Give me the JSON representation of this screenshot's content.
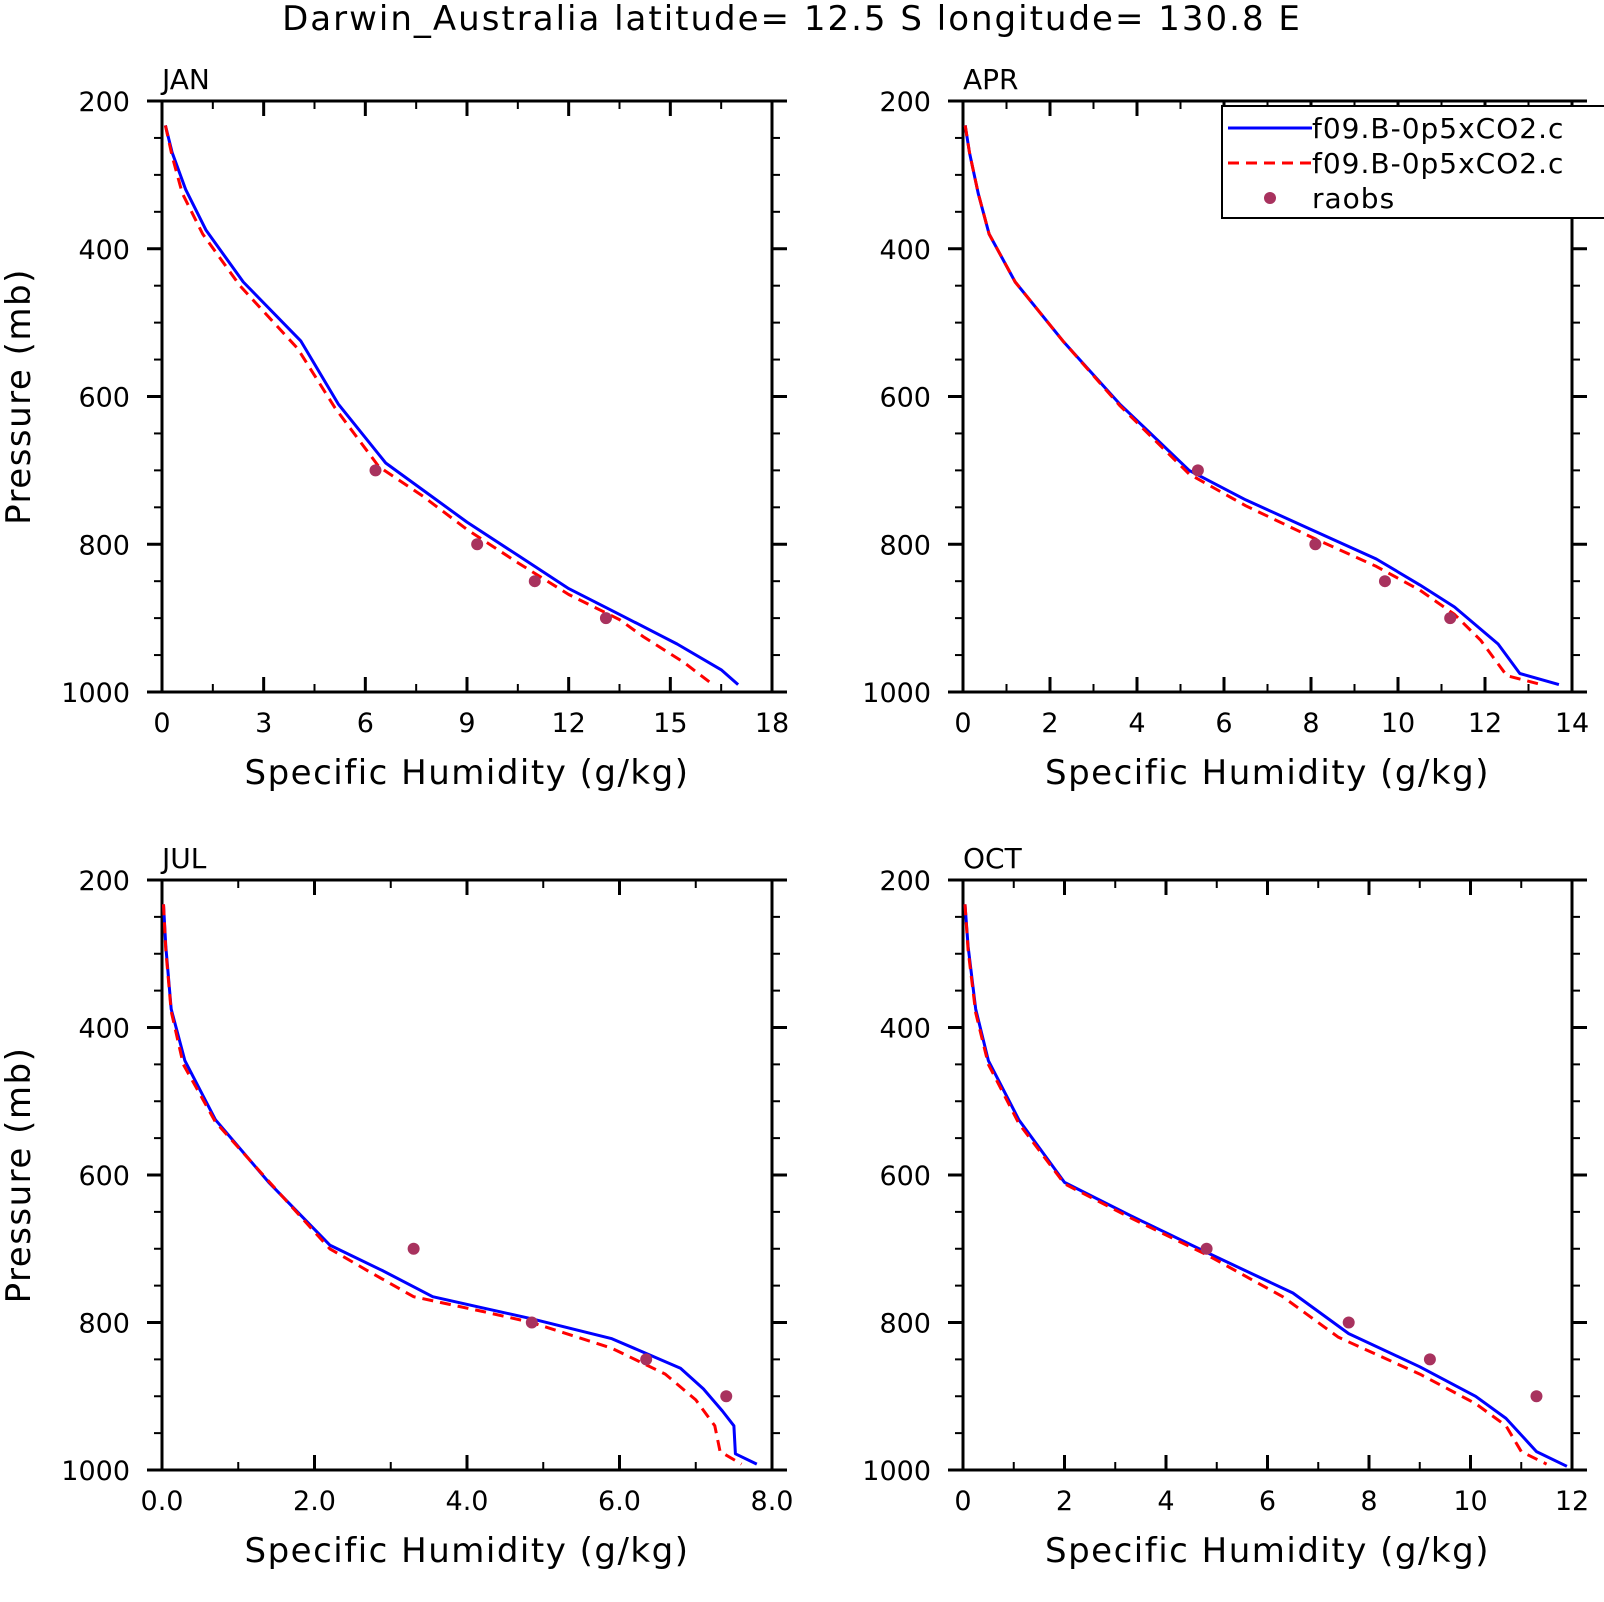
{
  "title": "Darwin_Australia  latitude= 12.5 S longitude= 130.8 E",
  "colors": {
    "model_solid": "#0000ff",
    "model_dashed": "#ff0000",
    "raobs": "#a8325e",
    "axis": "#000000"
  },
  "legend": {
    "entries": [
      {
        "label": "f09.B-0p5xCO2.c",
        "style": "solid"
      },
      {
        "label": "f09.B-0p5xCO2.c",
        "style": "dashed"
      },
      {
        "label": "raobs",
        "style": "marker"
      }
    ]
  },
  "chart_data": [
    {
      "type": "line",
      "panel": "JAN",
      "xlabel": "Specific Humidity (g/kg)",
      "ylabel": "Pressure (mb)",
      "xlim": [
        0,
        18
      ],
      "ylim": [
        200,
        1000
      ],
      "y_inverted": true,
      "xticks": [
        0,
        3,
        6,
        9,
        12,
        15,
        18
      ],
      "xtick_labels": [
        "0",
        "3",
        "6",
        "9",
        "12",
        "15",
        "18"
      ],
      "yticks": [
        200,
        400,
        600,
        800,
        1000
      ],
      "ytick_labels": [
        "200",
        "400",
        "600",
        "800",
        "1000"
      ],
      "series": [
        {
          "style": "solid",
          "points": [
            [
              0.1,
              233
            ],
            [
              0.3,
              270
            ],
            [
              0.7,
              320
            ],
            [
              1.3,
              375
            ],
            [
              2.4,
              445
            ],
            [
              4.1,
              525
            ],
            [
              5.2,
              610
            ],
            [
              6.6,
              690
            ],
            [
              7.8,
              730
            ],
            [
              9,
              770
            ],
            [
              10.5,
              815
            ],
            [
              12,
              860
            ],
            [
              13.5,
              895
            ],
            [
              15.2,
              935
            ],
            [
              16.5,
              970
            ],
            [
              17,
              990
            ]
          ]
        },
        {
          "style": "dashed",
          "points": [
            [
              0.1,
              233
            ],
            [
              0.3,
              275
            ],
            [
              0.6,
              325
            ],
            [
              1.2,
              380
            ],
            [
              2.3,
              450
            ],
            [
              4,
              535
            ],
            [
              5.1,
              615
            ],
            [
              6.4,
              695
            ],
            [
              7.7,
              735
            ],
            [
              9,
              780
            ],
            [
              10.5,
              825
            ],
            [
              12,
              868
            ],
            [
              13.5,
              902
            ],
            [
              14.2,
              925
            ],
            [
              15.4,
              960
            ],
            [
              16.2,
              988
            ]
          ]
        },
        {
          "style": "marker",
          "points": [
            [
              6.3,
              700
            ],
            [
              9.3,
              800
            ],
            [
              11,
              850
            ],
            [
              13.1,
              900
            ]
          ]
        }
      ]
    },
    {
      "type": "line",
      "panel": "APR",
      "xlabel": "Specific Humidity (g/kg)",
      "ylabel": "",
      "xlim": [
        0,
        14
      ],
      "ylim": [
        200,
        1000
      ],
      "y_inverted": true,
      "xticks": [
        0,
        2,
        4,
        6,
        8,
        10,
        12,
        14
      ],
      "xtick_labels": [
        "0",
        "2",
        "4",
        "6",
        "8",
        "10",
        "12",
        "14"
      ],
      "yticks": [
        200,
        400,
        600,
        800,
        1000
      ],
      "ytick_labels": [
        "200",
        "400",
        "600",
        "800",
        "1000"
      ],
      "series": [
        {
          "style": "solid",
          "points": [
            [
              0.05,
              233
            ],
            [
              0.15,
              270
            ],
            [
              0.35,
              325
            ],
            [
              0.6,
              380
            ],
            [
              1.2,
              445
            ],
            [
              2.3,
              525
            ],
            [
              3.6,
              610
            ],
            [
              5.2,
              700
            ],
            [
              6.5,
              740
            ],
            [
              8,
              780
            ],
            [
              9.5,
              820
            ],
            [
              10.5,
              855
            ],
            [
              11.3,
              885
            ],
            [
              11.8,
              910
            ],
            [
              12.3,
              935
            ],
            [
              12.8,
              975
            ],
            [
              13.7,
              990
            ]
          ]
        },
        {
          "style": "dashed",
          "points": [
            [
              0.05,
              233
            ],
            [
              0.15,
              270
            ],
            [
              0.35,
              325
            ],
            [
              0.6,
              380
            ],
            [
              1.2,
              445
            ],
            [
              2.3,
              525
            ],
            [
              3.6,
              612
            ],
            [
              5.2,
              705
            ],
            [
              6.5,
              748
            ],
            [
              8,
              790
            ],
            [
              9.5,
              830
            ],
            [
              10.5,
              862
            ],
            [
              11.3,
              895
            ],
            [
              11.9,
              930
            ],
            [
              12.5,
              978
            ],
            [
              13.3,
              990
            ]
          ]
        },
        {
          "style": "marker",
          "points": [
            [
              5.4,
              700
            ],
            [
              8.1,
              800
            ],
            [
              9.7,
              850
            ],
            [
              11.2,
              900
            ]
          ]
        }
      ]
    },
    {
      "type": "line",
      "panel": "JUL",
      "xlabel": "Specific Humidity (g/kg)",
      "ylabel": "Pressure (mb)",
      "xlim": [
        0,
        8
      ],
      "ylim": [
        200,
        1000
      ],
      "y_inverted": true,
      "xticks": [
        0,
        2,
        4,
        6,
        8
      ],
      "xtick_labels": [
        "0.0",
        "2.0",
        "4.0",
        "6.0",
        "8.0"
      ],
      "yticks": [
        200,
        400,
        600,
        800,
        1000
      ],
      "ytick_labels": [
        "200",
        "400",
        "600",
        "800",
        "1000"
      ],
      "series": [
        {
          "style": "solid",
          "points": [
            [
              0.02,
              233
            ],
            [
              0.05,
              290
            ],
            [
              0.12,
              375
            ],
            [
              0.3,
              445
            ],
            [
              0.7,
              525
            ],
            [
              1.4,
              610
            ],
            [
              2.2,
              695
            ],
            [
              2.9,
              730
            ],
            [
              3.55,
              765
            ],
            [
              4.2,
              780
            ],
            [
              4.85,
              795
            ],
            [
              5.9,
              822
            ],
            [
              6.8,
              862
            ],
            [
              7.1,
              890
            ],
            [
              7.35,
              920
            ],
            [
              7.5,
              940
            ],
            [
              7.52,
              978
            ],
            [
              7.8,
              992
            ]
          ]
        },
        {
          "style": "dashed",
          "points": [
            [
              0.02,
              233
            ],
            [
              0.05,
              295
            ],
            [
              0.12,
              378
            ],
            [
              0.28,
              450
            ],
            [
              0.7,
              528
            ],
            [
              1.5,
              620
            ],
            [
              2.2,
              700
            ],
            [
              2.7,
              730
            ],
            [
              3.3,
              765
            ],
            [
              4.2,
              785
            ],
            [
              4.85,
              800
            ],
            [
              5.9,
              835
            ],
            [
              6.6,
              870
            ],
            [
              7,
              905
            ],
            [
              7.25,
              940
            ],
            [
              7.32,
              975
            ],
            [
              7.6,
              992
            ]
          ]
        },
        {
          "style": "marker",
          "points": [
            [
              3.3,
              700
            ],
            [
              4.85,
              800
            ],
            [
              6.35,
              850
            ],
            [
              7.4,
              900
            ]
          ]
        }
      ]
    },
    {
      "type": "line",
      "panel": "OCT",
      "xlabel": "Specific Humidity (g/kg)",
      "ylabel": "",
      "xlim": [
        0,
        12
      ],
      "ylim": [
        200,
        1000
      ],
      "y_inverted": true,
      "xticks": [
        0,
        2,
        4,
        6,
        8,
        10,
        12
      ],
      "xtick_labels": [
        "0",
        "2",
        "4",
        "6",
        "8",
        "10",
        "12"
      ],
      "yticks": [
        200,
        400,
        600,
        800,
        1000
      ],
      "ytick_labels": [
        "200",
        "400",
        "600",
        "800",
        "1000"
      ],
      "series": [
        {
          "style": "solid",
          "points": [
            [
              0.04,
              233
            ],
            [
              0.1,
              290
            ],
            [
              0.25,
              375
            ],
            [
              0.5,
              445
            ],
            [
              1.1,
              525
            ],
            [
              2,
              610
            ],
            [
              3.3,
              655
            ],
            [
              4.8,
              705
            ],
            [
              6.5,
              760
            ],
            [
              7.6,
              815
            ],
            [
              9,
              860
            ],
            [
              10.1,
              900
            ],
            [
              10.7,
              930
            ],
            [
              11.3,
              975
            ],
            [
              11.9,
              995
            ]
          ]
        },
        {
          "style": "dashed",
          "points": [
            [
              0.04,
              233
            ],
            [
              0.1,
              295
            ],
            [
              0.25,
              380
            ],
            [
              0.5,
              450
            ],
            [
              1.1,
              530
            ],
            [
              2,
              612
            ],
            [
              3.3,
              658
            ],
            [
              4.8,
              708
            ],
            [
              6.3,
              765
            ],
            [
              7.4,
              820
            ],
            [
              9,
              870
            ],
            [
              10.1,
              910
            ],
            [
              10.7,
              940
            ],
            [
              11,
              975
            ],
            [
              11.5,
              992
            ]
          ]
        },
        {
          "style": "marker",
          "points": [
            [
              4.8,
              700
            ],
            [
              7.6,
              800
            ],
            [
              9.2,
              850
            ],
            [
              11.3,
              900
            ]
          ]
        }
      ]
    }
  ]
}
